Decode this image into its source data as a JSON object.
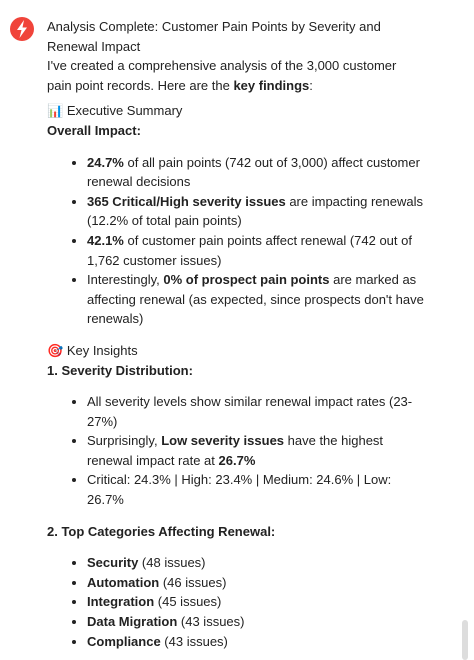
{
  "message": {
    "title": "Analysis Complete: Customer Pain Points by Severity and Renewal Impact",
    "intro": [
      {
        "t": "I've created a comprehensive analysis of the 3,000 customer pain point records. Here are the "
      },
      {
        "b": "key findings"
      },
      {
        "t": ":"
      }
    ],
    "sections": [
      {
        "icon": "📊",
        "heading": "Executive Summary",
        "subheading": "Overall Impact:",
        "items": [
          [
            {
              "b": "24.7%"
            },
            {
              "t": " of all pain points (742 out of 3,000) affect customer renewal decisions"
            }
          ],
          [
            {
              "b": "365 Critical/High severity issues"
            },
            {
              "t": " are impacting renewals (12.2% of total pain points)"
            }
          ],
          [
            {
              "b": "42.1%"
            },
            {
              "t": " of customer pain points affect renewal (742 out of 1,762 customer issues)"
            }
          ],
          [
            {
              "t": "Interestingly, "
            },
            {
              "b": "0% of prospect pain points"
            },
            {
              "t": " are marked as affecting renewal (as expected, since prospects don't have renewals)"
            }
          ]
        ]
      },
      {
        "icon": "🎯",
        "heading": "Key Insights",
        "subheading": "1. Severity Distribution:",
        "items": [
          [
            {
              "t": "All severity levels show similar renewal impact rates (23-27%)"
            }
          ],
          [
            {
              "t": "Surprisingly, "
            },
            {
              "b": "Low severity issues"
            },
            {
              "t": " have the highest renewal impact rate at "
            },
            {
              "b": "26.7%"
            }
          ],
          [
            {
              "t": "Critical: 24.3% | High: 23.4% | Medium: 24.6% | Low: 26.7%"
            }
          ]
        ]
      },
      {
        "subheading": "2. Top Categories Affecting Renewal:",
        "items": [
          [
            {
              "b": "Security"
            },
            {
              "t": " (48 issues)"
            }
          ],
          [
            {
              "b": "Automation"
            },
            {
              "t": " (46 issues)"
            }
          ],
          [
            {
              "b": "Integration"
            },
            {
              "t": " (45 issues)"
            }
          ],
          [
            {
              "b": "Data Migration"
            },
            {
              "t": " (43 issues)"
            }
          ],
          [
            {
              "b": "Compliance"
            },
            {
              "t": " (43 issues)"
            }
          ]
        ]
      }
    ]
  }
}
